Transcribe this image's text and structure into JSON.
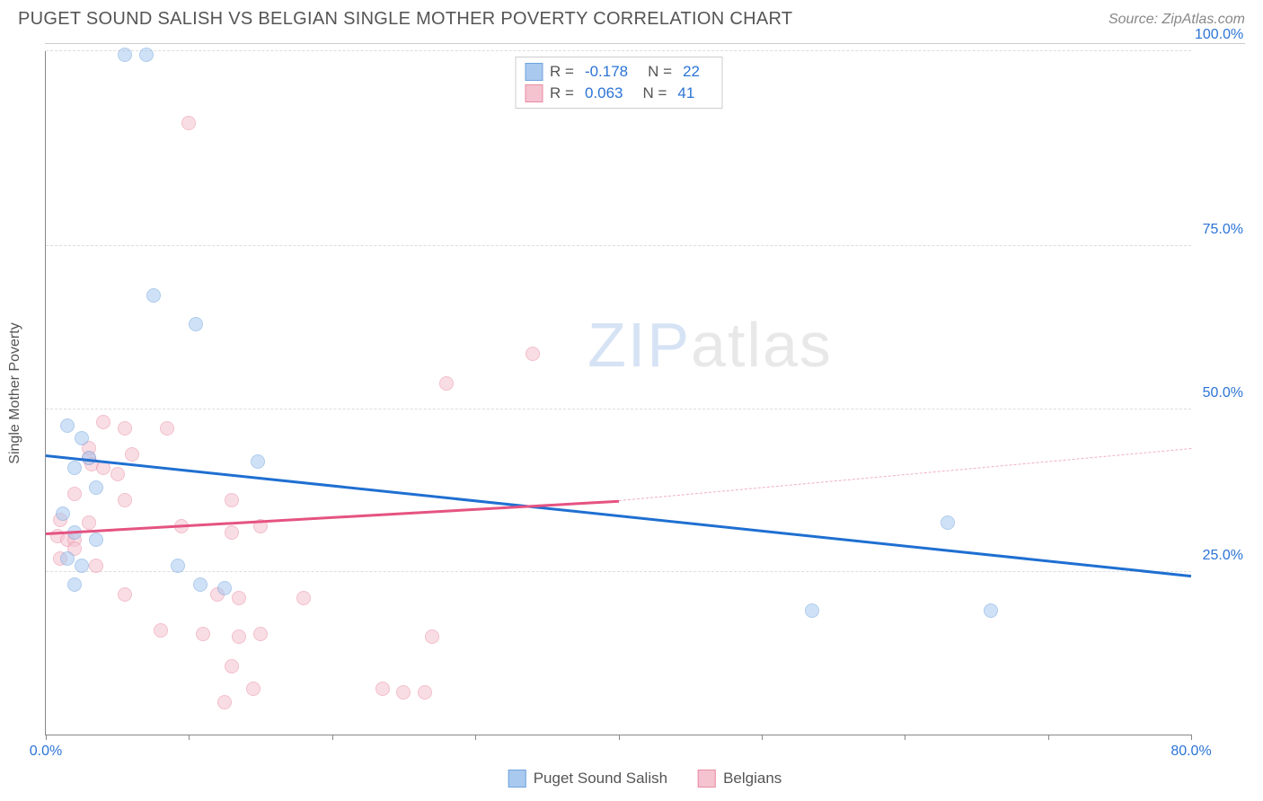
{
  "header": {
    "title": "PUGET SOUND SALISH VS BELGIAN SINGLE MOTHER POVERTY CORRELATION CHART",
    "source": "Source: ZipAtlas.com"
  },
  "chart": {
    "type": "scatter",
    "y_axis_label": "Single Mother Poverty",
    "xlim": [
      0,
      80
    ],
    "ylim": [
      0,
      105
    ],
    "x_ticks": [
      0,
      10,
      20,
      30,
      40,
      50,
      60,
      70,
      80
    ],
    "x_tick_labels": {
      "0": "0.0%",
      "80": "80.0%"
    },
    "y_gridlines": [
      25,
      50,
      75,
      105
    ],
    "y_tick_labels": {
      "25": "25.0%",
      "50": "50.0%",
      "75": "75.0%",
      "105": "100.0%"
    },
    "background_color": "#ffffff",
    "grid_color": "#dddddd",
    "axis_color": "#888888",
    "label_color": "#555555",
    "tick_label_color": "#2b74d6",
    "marker_size": 16,
    "marker_opacity": 0.55,
    "series": {
      "salish": {
        "label": "Puget Sound Salish",
        "fill": "#a9c9ef",
        "stroke": "#6fa3de",
        "R": "-0.178",
        "N": "22",
        "trend": {
          "x1": 0,
          "y1": 43,
          "x2": 80,
          "y2": 24.5,
          "color": "#1f6fd1",
          "width": 2.5,
          "dash": "solid"
        },
        "points": [
          [
            5.5,
            104.5
          ],
          [
            7,
            104.5
          ],
          [
            7.5,
            67.5
          ],
          [
            10.5,
            63
          ],
          [
            1.5,
            47.5
          ],
          [
            2,
            41
          ],
          [
            3,
            42.5
          ],
          [
            3.5,
            38
          ],
          [
            14.8,
            42
          ],
          [
            1.2,
            34
          ],
          [
            1.5,
            27
          ],
          [
            2.5,
            26
          ],
          [
            2,
            23
          ],
          [
            9.2,
            26
          ],
          [
            10.8,
            23
          ],
          [
            12.5,
            22.5
          ],
          [
            63,
            32.5
          ],
          [
            53.5,
            19
          ],
          [
            66,
            19
          ],
          [
            2.5,
            45.5
          ],
          [
            3.5,
            30
          ],
          [
            2,
            31
          ]
        ]
      },
      "belgians": {
        "label": "Belgians",
        "fill": "#f5c3cf",
        "stroke": "#e88ba3",
        "R": "0.063",
        "N": "41",
        "trend_solid": {
          "x1": 0,
          "y1": 31,
          "x2": 40,
          "y2": 36,
          "color": "#e55381",
          "width": 2.5
        },
        "trend_dash": {
          "x1": 40,
          "y1": 36,
          "x2": 80,
          "y2": 44,
          "color": "#f0b0c0",
          "width": 1.5
        },
        "points": [
          [
            10,
            94
          ],
          [
            34,
            58.5
          ],
          [
            28,
            54
          ],
          [
            4,
            48
          ],
          [
            5.5,
            47
          ],
          [
            8.5,
            47
          ],
          [
            3,
            42.5
          ],
          [
            3.2,
            41.5
          ],
          [
            4,
            41
          ],
          [
            5,
            40
          ],
          [
            2,
            37
          ],
          [
            5.5,
            36
          ],
          [
            13,
            36
          ],
          [
            1,
            33
          ],
          [
            3,
            32.5
          ],
          [
            9.5,
            32
          ],
          [
            13,
            31
          ],
          [
            15,
            32
          ],
          [
            0.8,
            30.5
          ],
          [
            1.5,
            30
          ],
          [
            2,
            30
          ],
          [
            2,
            28.5
          ],
          [
            1,
            27
          ],
          [
            3.5,
            26
          ],
          [
            5.5,
            21.5
          ],
          [
            12,
            21.5
          ],
          [
            13.5,
            21
          ],
          [
            18,
            21
          ],
          [
            8,
            16
          ],
          [
            11,
            15.5
          ],
          [
            13.5,
            15
          ],
          [
            15,
            15.5
          ],
          [
            13,
            10.5
          ],
          [
            14.5,
            7
          ],
          [
            27,
            15
          ],
          [
            23.5,
            7
          ],
          [
            25,
            6.5
          ],
          [
            26.5,
            6.5
          ],
          [
            12.5,
            5
          ],
          [
            3,
            44
          ],
          [
            6,
            43
          ]
        ]
      }
    },
    "watermark": {
      "zip": "ZIP",
      "atlas": "atlas",
      "zip_color": "#d6e3f5",
      "atlas_color": "#e8e8e8"
    }
  }
}
